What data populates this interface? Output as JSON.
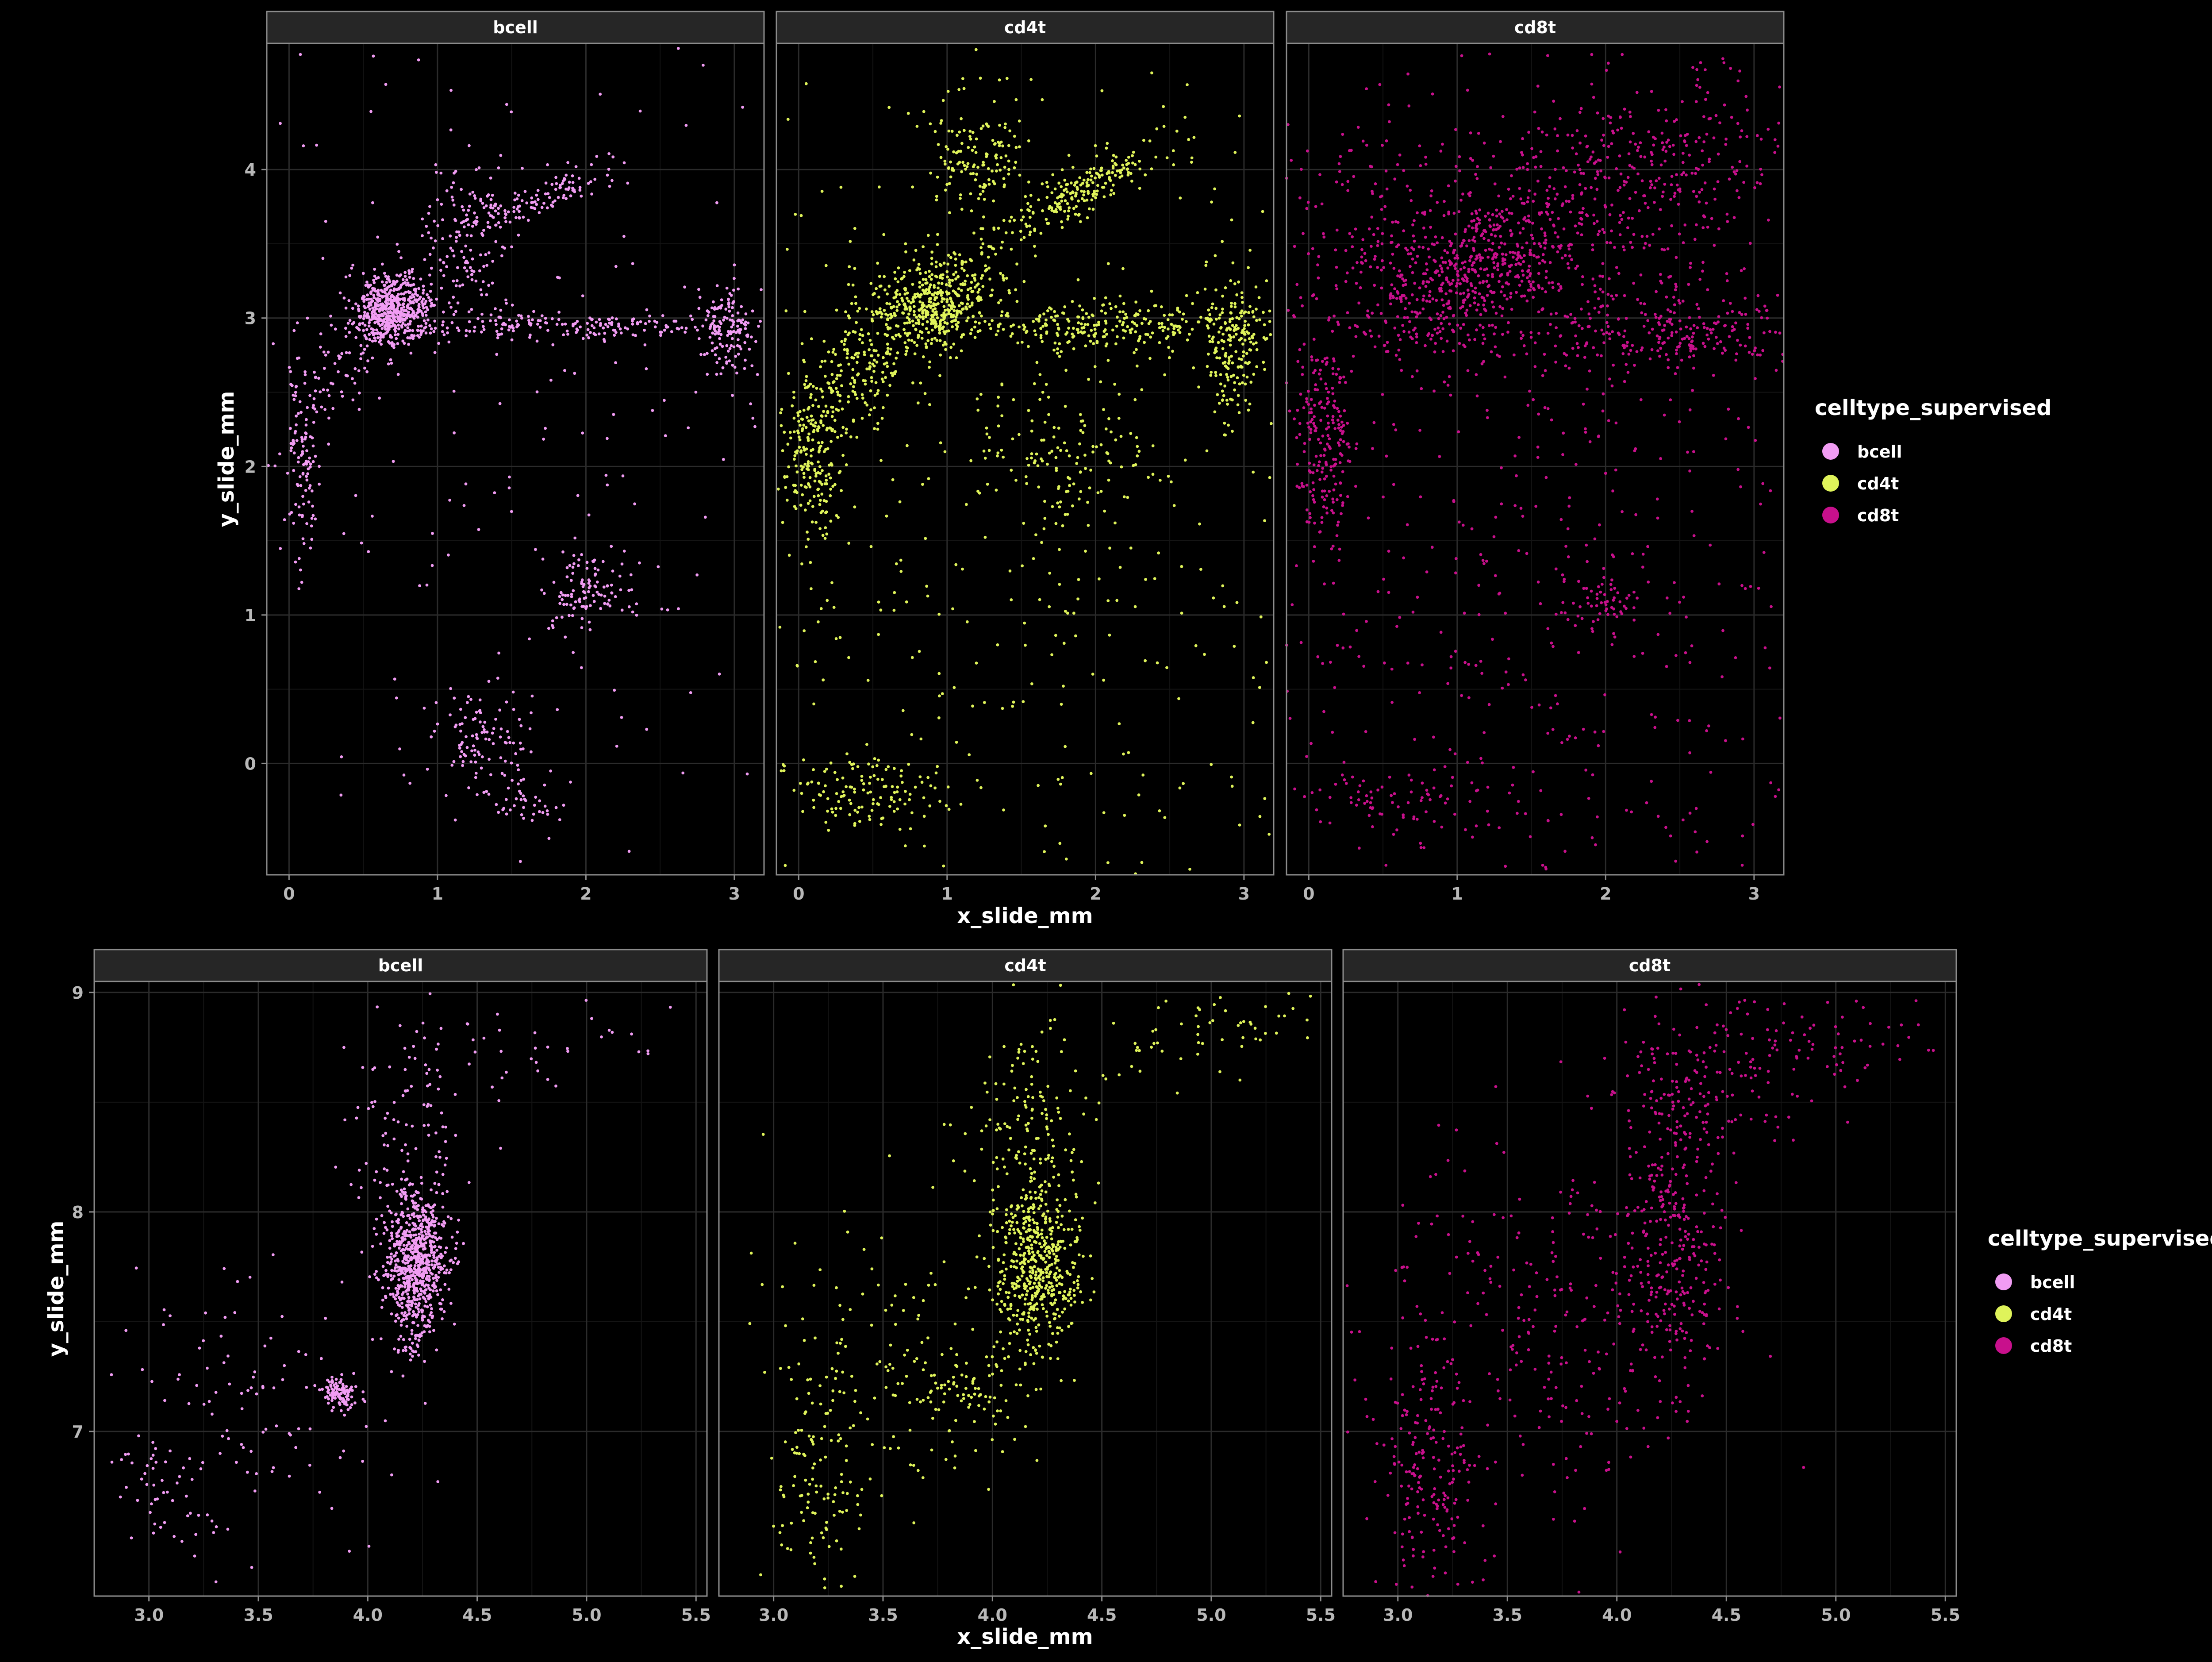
{
  "colors": {
    "background": "#000000",
    "panel_border": "#8c8c8c",
    "grid_major": "#2b2b2b",
    "grid_minor": "#141414",
    "strip_fill": "#262626",
    "tick_text": "#b8b8b8",
    "label_text": "#ffffff"
  },
  "chart_data": [
    {
      "type": "scatter",
      "xlabel": "x_slide_mm",
      "ylabel": "y_slide_mm",
      "facet_by": "celltype_supervised",
      "xlim": [
        -0.15,
        3.2
      ],
      "ylim": [
        -0.75,
        4.85
      ],
      "x_ticks": [
        0,
        1,
        2,
        3
      ],
      "x_tick_labels": [
        "0",
        "1",
        "2",
        "3"
      ],
      "y_ticks": [
        0,
        1,
        2,
        3,
        4
      ],
      "y_tick_labels": [
        "0",
        "1",
        "2",
        "3",
        "4"
      ],
      "legend": {
        "title": "celltype_supervised",
        "position": "right",
        "items": [
          {
            "label": "bcell",
            "color": "#f19cf3"
          },
          {
            "label": "cd4t",
            "color": "#dff35a"
          },
          {
            "label": "cd8t",
            "color": "#c8108c"
          }
        ]
      },
      "panels": [
        {
          "strip": "bcell",
          "color": "#f19cf3",
          "clusters": [
            {
              "x": 0.7,
              "y": 3.05,
              "sx": 0.12,
              "sy": 0.12,
              "angle": 38,
              "n": 550
            },
            {
              "x": 0.4,
              "y": 2.7,
              "sx": 0.25,
              "sy": 0.12,
              "angle": 55,
              "n": 70
            },
            {
              "x": 0.08,
              "y": 2.05,
              "sx": 0.06,
              "sy": 0.3,
              "angle": 0,
              "n": 110
            },
            {
              "x": 1.2,
              "y": 3.5,
              "sx": 0.15,
              "sy": 0.3,
              "angle": 0,
              "n": 150
            },
            {
              "x": 1.75,
              "y": 3.85,
              "sx": 0.25,
              "sy": 0.06,
              "angle": 25,
              "n": 110
            },
            {
              "x": 2.0,
              "y": 2.95,
              "sx": 0.8,
              "sy": 0.05,
              "angle": 0,
              "n": 230
            },
            {
              "x": 2.95,
              "y": 2.95,
              "sx": 0.08,
              "sy": 0.15,
              "angle": 0,
              "n": 120
            },
            {
              "x": 2.0,
              "y": 1.15,
              "sx": 0.15,
              "sy": 0.15,
              "angle": 35,
              "n": 110
            },
            {
              "x": 1.3,
              "y": 0.15,
              "sx": 0.18,
              "sy": 0.2,
              "angle": 0,
              "n": 110
            },
            {
              "x": 1.6,
              "y": -0.25,
              "sx": 0.15,
              "sy": 0.1,
              "angle": 0,
              "n": 40
            },
            {
              "x": 1.6,
              "y": 2.4,
              "sx": 1.4,
              "sy": 1.9,
              "angle": 0,
              "n": 260
            }
          ]
        },
        {
          "strip": "cd4t",
          "color": "#dff35a",
          "clusters": [
            {
              "x": 0.9,
              "y": 3.1,
              "sx": 0.25,
              "sy": 0.15,
              "angle": 25,
              "n": 500
            },
            {
              "x": 0.1,
              "y": 2.1,
              "sx": 0.1,
              "sy": 0.28,
              "angle": 0,
              "n": 220
            },
            {
              "x": 0.4,
              "y": 2.6,
              "sx": 0.2,
              "sy": 0.15,
              "angle": 45,
              "n": 130
            },
            {
              "x": 1.2,
              "y": 4.1,
              "sx": 0.15,
              "sy": 0.2,
              "angle": 0,
              "n": 140
            },
            {
              "x": 1.9,
              "y": 3.85,
              "sx": 0.3,
              "sy": 0.08,
              "angle": 28,
              "n": 220
            },
            {
              "x": 2.2,
              "y": 2.95,
              "sx": 0.7,
              "sy": 0.08,
              "angle": 0,
              "n": 320
            },
            {
              "x": 2.92,
              "y": 2.85,
              "sx": 0.1,
              "sy": 0.25,
              "angle": 0,
              "n": 160
            },
            {
              "x": 1.8,
              "y": 2.05,
              "sx": 0.3,
              "sy": 0.3,
              "angle": 0,
              "n": 130
            },
            {
              "x": 0.5,
              "y": -0.2,
              "sx": 0.3,
              "sy": 0.12,
              "angle": 0,
              "n": 130
            },
            {
              "x": 1.5,
              "y": 1.7,
              "sx": 1.5,
              "sy": 1.9,
              "angle": 0,
              "n": 500
            }
          ]
        },
        {
          "strip": "cd8t",
          "color": "#c8108c",
          "clusters": [
            {
              "x": 1.1,
              "y": 3.3,
              "sx": 0.4,
              "sy": 0.2,
              "angle": 30,
              "n": 500
            },
            {
              "x": 0.1,
              "y": 2.2,
              "sx": 0.1,
              "sy": 0.35,
              "angle": 0,
              "n": 200
            },
            {
              "x": 2.2,
              "y": 3.9,
              "sx": 0.6,
              "sy": 0.4,
              "angle": 25,
              "n": 400
            },
            {
              "x": 2.4,
              "y": 2.9,
              "sx": 0.6,
              "sy": 0.12,
              "angle": 0,
              "n": 250
            },
            {
              "x": 0.6,
              "y": 3.6,
              "sx": 0.5,
              "sy": 0.4,
              "angle": 0,
              "n": 200
            },
            {
              "x": 2.0,
              "y": 1.1,
              "sx": 0.15,
              "sy": 0.15,
              "angle": 0,
              "n": 60
            },
            {
              "x": 0.6,
              "y": -0.25,
              "sx": 0.4,
              "sy": 0.1,
              "angle": 0,
              "n": 80
            },
            {
              "x": 1.5,
              "y": 1.5,
              "sx": 1.5,
              "sy": 2.0,
              "angle": 0,
              "n": 800
            }
          ]
        }
      ]
    },
    {
      "type": "scatter",
      "xlabel": "x_slide_mm",
      "ylabel": "y_slide_mm",
      "facet_by": "celltype_supervised",
      "xlim": [
        2.75,
        5.55
      ],
      "ylim": [
        6.25,
        9.05
      ],
      "x_ticks": [
        3.0,
        3.5,
        4.0,
        4.5,
        5.0,
        5.5
      ],
      "x_tick_labels": [
        "3.0",
        "3.5",
        "4.0",
        "4.5",
        "5.0",
        "5.5"
      ],
      "y_ticks": [
        7,
        8,
        9
      ],
      "y_tick_labels": [
        "7",
        "8",
        "9"
      ],
      "legend": {
        "title": "celltype_supervised",
        "position": "right",
        "items": [
          {
            "label": "bcell",
            "color": "#f19cf3"
          },
          {
            "label": "cd4t",
            "color": "#dff35a"
          },
          {
            "label": "cd8t",
            "color": "#c8108c"
          }
        ]
      },
      "panels": [
        {
          "strip": "bcell",
          "color": "#f19cf3",
          "clusters": [
            {
              "x": 4.22,
              "y": 7.8,
              "sx": 0.07,
              "sy": 0.15,
              "angle": 0,
              "n": 700
            },
            {
              "x": 3.87,
              "y": 7.17,
              "sx": 0.04,
              "sy": 0.035,
              "angle": 0,
              "n": 110
            },
            {
              "x": 4.2,
              "y": 7.55,
              "sx": 0.05,
              "sy": 0.12,
              "angle": 0,
              "n": 90
            },
            {
              "x": 4.2,
              "y": 8.4,
              "sx": 0.15,
              "sy": 0.25,
              "angle": 0,
              "n": 90
            },
            {
              "x": 3.4,
              "y": 7.1,
              "sx": 0.3,
              "sy": 0.35,
              "angle": 40,
              "n": 110
            },
            {
              "x": 4.8,
              "y": 8.75,
              "sx": 0.35,
              "sy": 0.1,
              "angle": 10,
              "n": 40
            },
            {
              "x": 3.1,
              "y": 6.7,
              "sx": 0.12,
              "sy": 0.15,
              "angle": 0,
              "n": 40
            }
          ]
        },
        {
          "strip": "cd4t",
          "color": "#dff35a",
          "clusters": [
            {
              "x": 4.2,
              "y": 7.75,
              "sx": 0.1,
              "sy": 0.2,
              "angle": 0,
              "n": 550
            },
            {
              "x": 4.15,
              "y": 8.45,
              "sx": 0.15,
              "sy": 0.2,
              "angle": 0,
              "n": 120
            },
            {
              "x": 3.85,
              "y": 7.2,
              "sx": 0.15,
              "sy": 0.08,
              "angle": 0,
              "n": 70
            },
            {
              "x": 3.2,
              "y": 6.8,
              "sx": 0.1,
              "sy": 0.25,
              "angle": 0,
              "n": 100
            },
            {
              "x": 3.5,
              "y": 7.3,
              "sx": 0.3,
              "sy": 0.35,
              "angle": 40,
              "n": 140
            },
            {
              "x": 4.9,
              "y": 8.8,
              "sx": 0.3,
              "sy": 0.1,
              "angle": 10,
              "n": 60
            }
          ]
        },
        {
          "strip": "cd8t",
          "color": "#c8108c",
          "clusters": [
            {
              "x": 4.25,
              "y": 7.9,
              "sx": 0.12,
              "sy": 0.35,
              "angle": 0,
              "n": 300
            },
            {
              "x": 3.15,
              "y": 6.8,
              "sx": 0.12,
              "sy": 0.3,
              "angle": 0,
              "n": 200
            },
            {
              "x": 3.7,
              "y": 7.5,
              "sx": 0.35,
              "sy": 0.4,
              "angle": 45,
              "n": 250
            },
            {
              "x": 4.4,
              "y": 8.6,
              "sx": 0.25,
              "sy": 0.2,
              "angle": 0,
              "n": 150
            },
            {
              "x": 5.0,
              "y": 8.8,
              "sx": 0.25,
              "sy": 0.1,
              "angle": 0,
              "n": 50
            }
          ]
        }
      ]
    }
  ]
}
